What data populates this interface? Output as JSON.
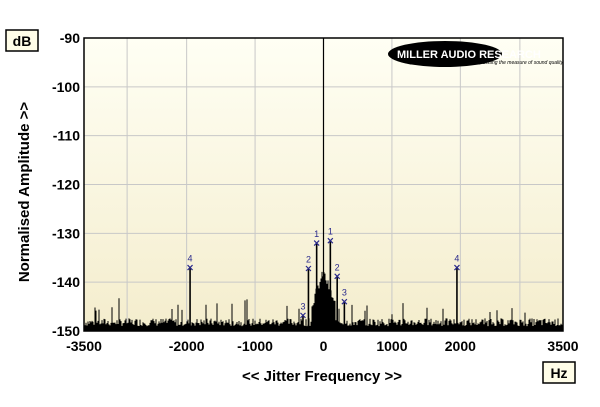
{
  "chart_data": {
    "type": "line",
    "xlabel": "<< Jitter Frequency >>",
    "ylabel": "Normalised Amplitude >>",
    "x_unit": "Hz",
    "y_unit": "dB",
    "xlim": [
      -3500,
      3500
    ],
    "ylim": [
      -150,
      -90
    ],
    "x_ticks": [
      -3500,
      -2000,
      -1000,
      0,
      1000,
      2000,
      3500
    ],
    "x_tick_labels": [
      "-3500",
      "-2000",
      "-1000",
      "0",
      "1000",
      "2000",
      "3500"
    ],
    "y_ticks": [
      -90,
      -100,
      -110,
      -120,
      -130,
      -140,
      -150
    ],
    "y_tick_labels": [
      "-90",
      "-100",
      "-110",
      "-120",
      "-130",
      "-140",
      "-150"
    ],
    "x_gridlines": [
      -2870,
      -2000,
      -1000,
      0,
      1000,
      2000,
      2870
    ],
    "grid": true,
    "noise_floor": -149,
    "series": [
      {
        "x": [
          -1950,
          -220,
          -100,
          100,
          200,
          305,
          -300,
          1950
        ],
        "y": [
          -137,
          -137.2,
          -132,
          -131.5,
          -138.8,
          -144,
          -146.8,
          -137
        ],
        "labels": [
          "4",
          "2",
          "1",
          "1",
          "2",
          "3",
          "3",
          "4"
        ]
      }
    ],
    "background_colors": [
      "#fffff4",
      "#f4edcd"
    ],
    "trace_color": "#000000",
    "marker_color": "#2a2a8c"
  },
  "logo": {
    "brand": "MILLER AUDIO RESEARCH",
    "tagline": "Setting the measure of sound quality"
  }
}
